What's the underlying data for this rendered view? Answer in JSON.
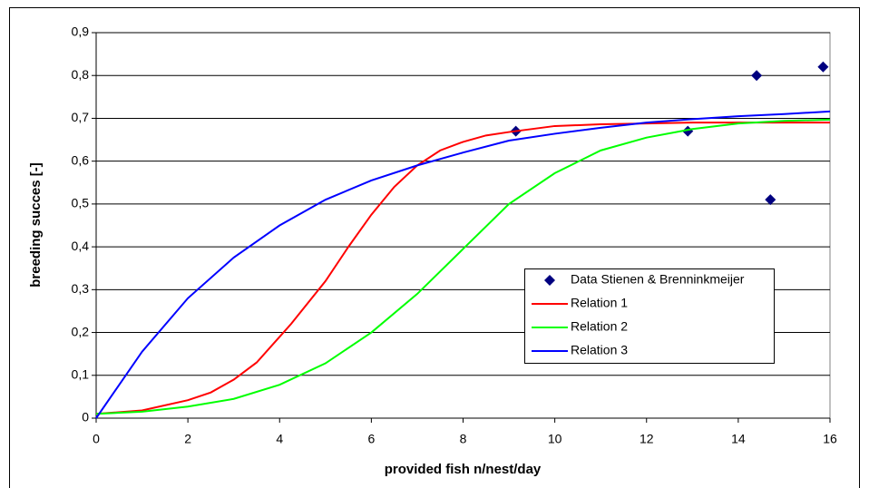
{
  "chart_data": {
    "type": "line",
    "x_label": "provided fish n/nest/day",
    "y_label": "breeding succes [-]",
    "xlim": [
      0,
      16
    ],
    "xticks": [
      0,
      2,
      4,
      6,
      8,
      10,
      12,
      14,
      16
    ],
    "ylim": [
      0,
      0.9
    ],
    "yticks": [
      0,
      {
        "value": 0.1,
        "label": "0,1"
      },
      {
        "value": 0.2,
        "label": "0,2"
      },
      {
        "value": 0.3,
        "label": "0,3"
      },
      {
        "value": 0.4,
        "label": "0,4"
      },
      {
        "value": 0.5,
        "label": "0,5"
      },
      {
        "value": 0.6,
        "label": "0,6"
      },
      {
        "value": 0.7,
        "label": "0,7"
      },
      {
        "value": 0.8,
        "label": "0,8"
      },
      {
        "value": 0.9,
        "label": "0,9"
      }
    ],
    "grid": true,
    "series": [
      {
        "name": "Data Stienen & Brenninkmeijer",
        "type": "scatter",
        "color": "#000080",
        "x": [
          9.15,
          12.9,
          14.4,
          14.7,
          15.85
        ],
        "values": [
          0.67,
          0.67,
          0.8,
          0.51,
          0.82
        ]
      },
      {
        "name": "Relation 1",
        "type": "line",
        "color": "#ff0000",
        "x": [
          0,
          1,
          2,
          2.5,
          3,
          3.5,
          4,
          4.25,
          5,
          5.5,
          6,
          6.5,
          7,
          7.5,
          8,
          8.5,
          9,
          10,
          11,
          12,
          13,
          14,
          16
        ],
        "values": [
          0.01,
          0.018,
          0.042,
          0.06,
          0.09,
          0.13,
          0.19,
          0.22,
          0.32,
          0.4,
          0.475,
          0.54,
          0.59,
          0.625,
          0.645,
          0.66,
          0.668,
          0.682,
          0.686,
          0.688,
          0.69,
          0.69,
          0.69
        ]
      },
      {
        "name": "Relation 2",
        "type": "line",
        "color": "#00ff00",
        "x": [
          0,
          1,
          2,
          3,
          4,
          5,
          6,
          7,
          8,
          9,
          10,
          11,
          12,
          13,
          14,
          15,
          16
        ],
        "values": [
          0.01,
          0.015,
          0.027,
          0.045,
          0.078,
          0.128,
          0.2,
          0.29,
          0.395,
          0.5,
          0.572,
          0.625,
          0.655,
          0.675,
          0.688,
          0.694,
          0.697
        ]
      },
      {
        "name": "Relation 3",
        "type": "line",
        "color": "#0000ff",
        "x": [
          0,
          1,
          2,
          3,
          4,
          5,
          6,
          7,
          8,
          9,
          10,
          11,
          12,
          13,
          14,
          15,
          16
        ],
        "values": [
          0,
          0.155,
          0.28,
          0.375,
          0.45,
          0.51,
          0.555,
          0.59,
          0.62,
          0.648,
          0.664,
          0.678,
          0.69,
          0.698,
          0.705,
          0.71,
          0.716
        ]
      }
    ]
  }
}
